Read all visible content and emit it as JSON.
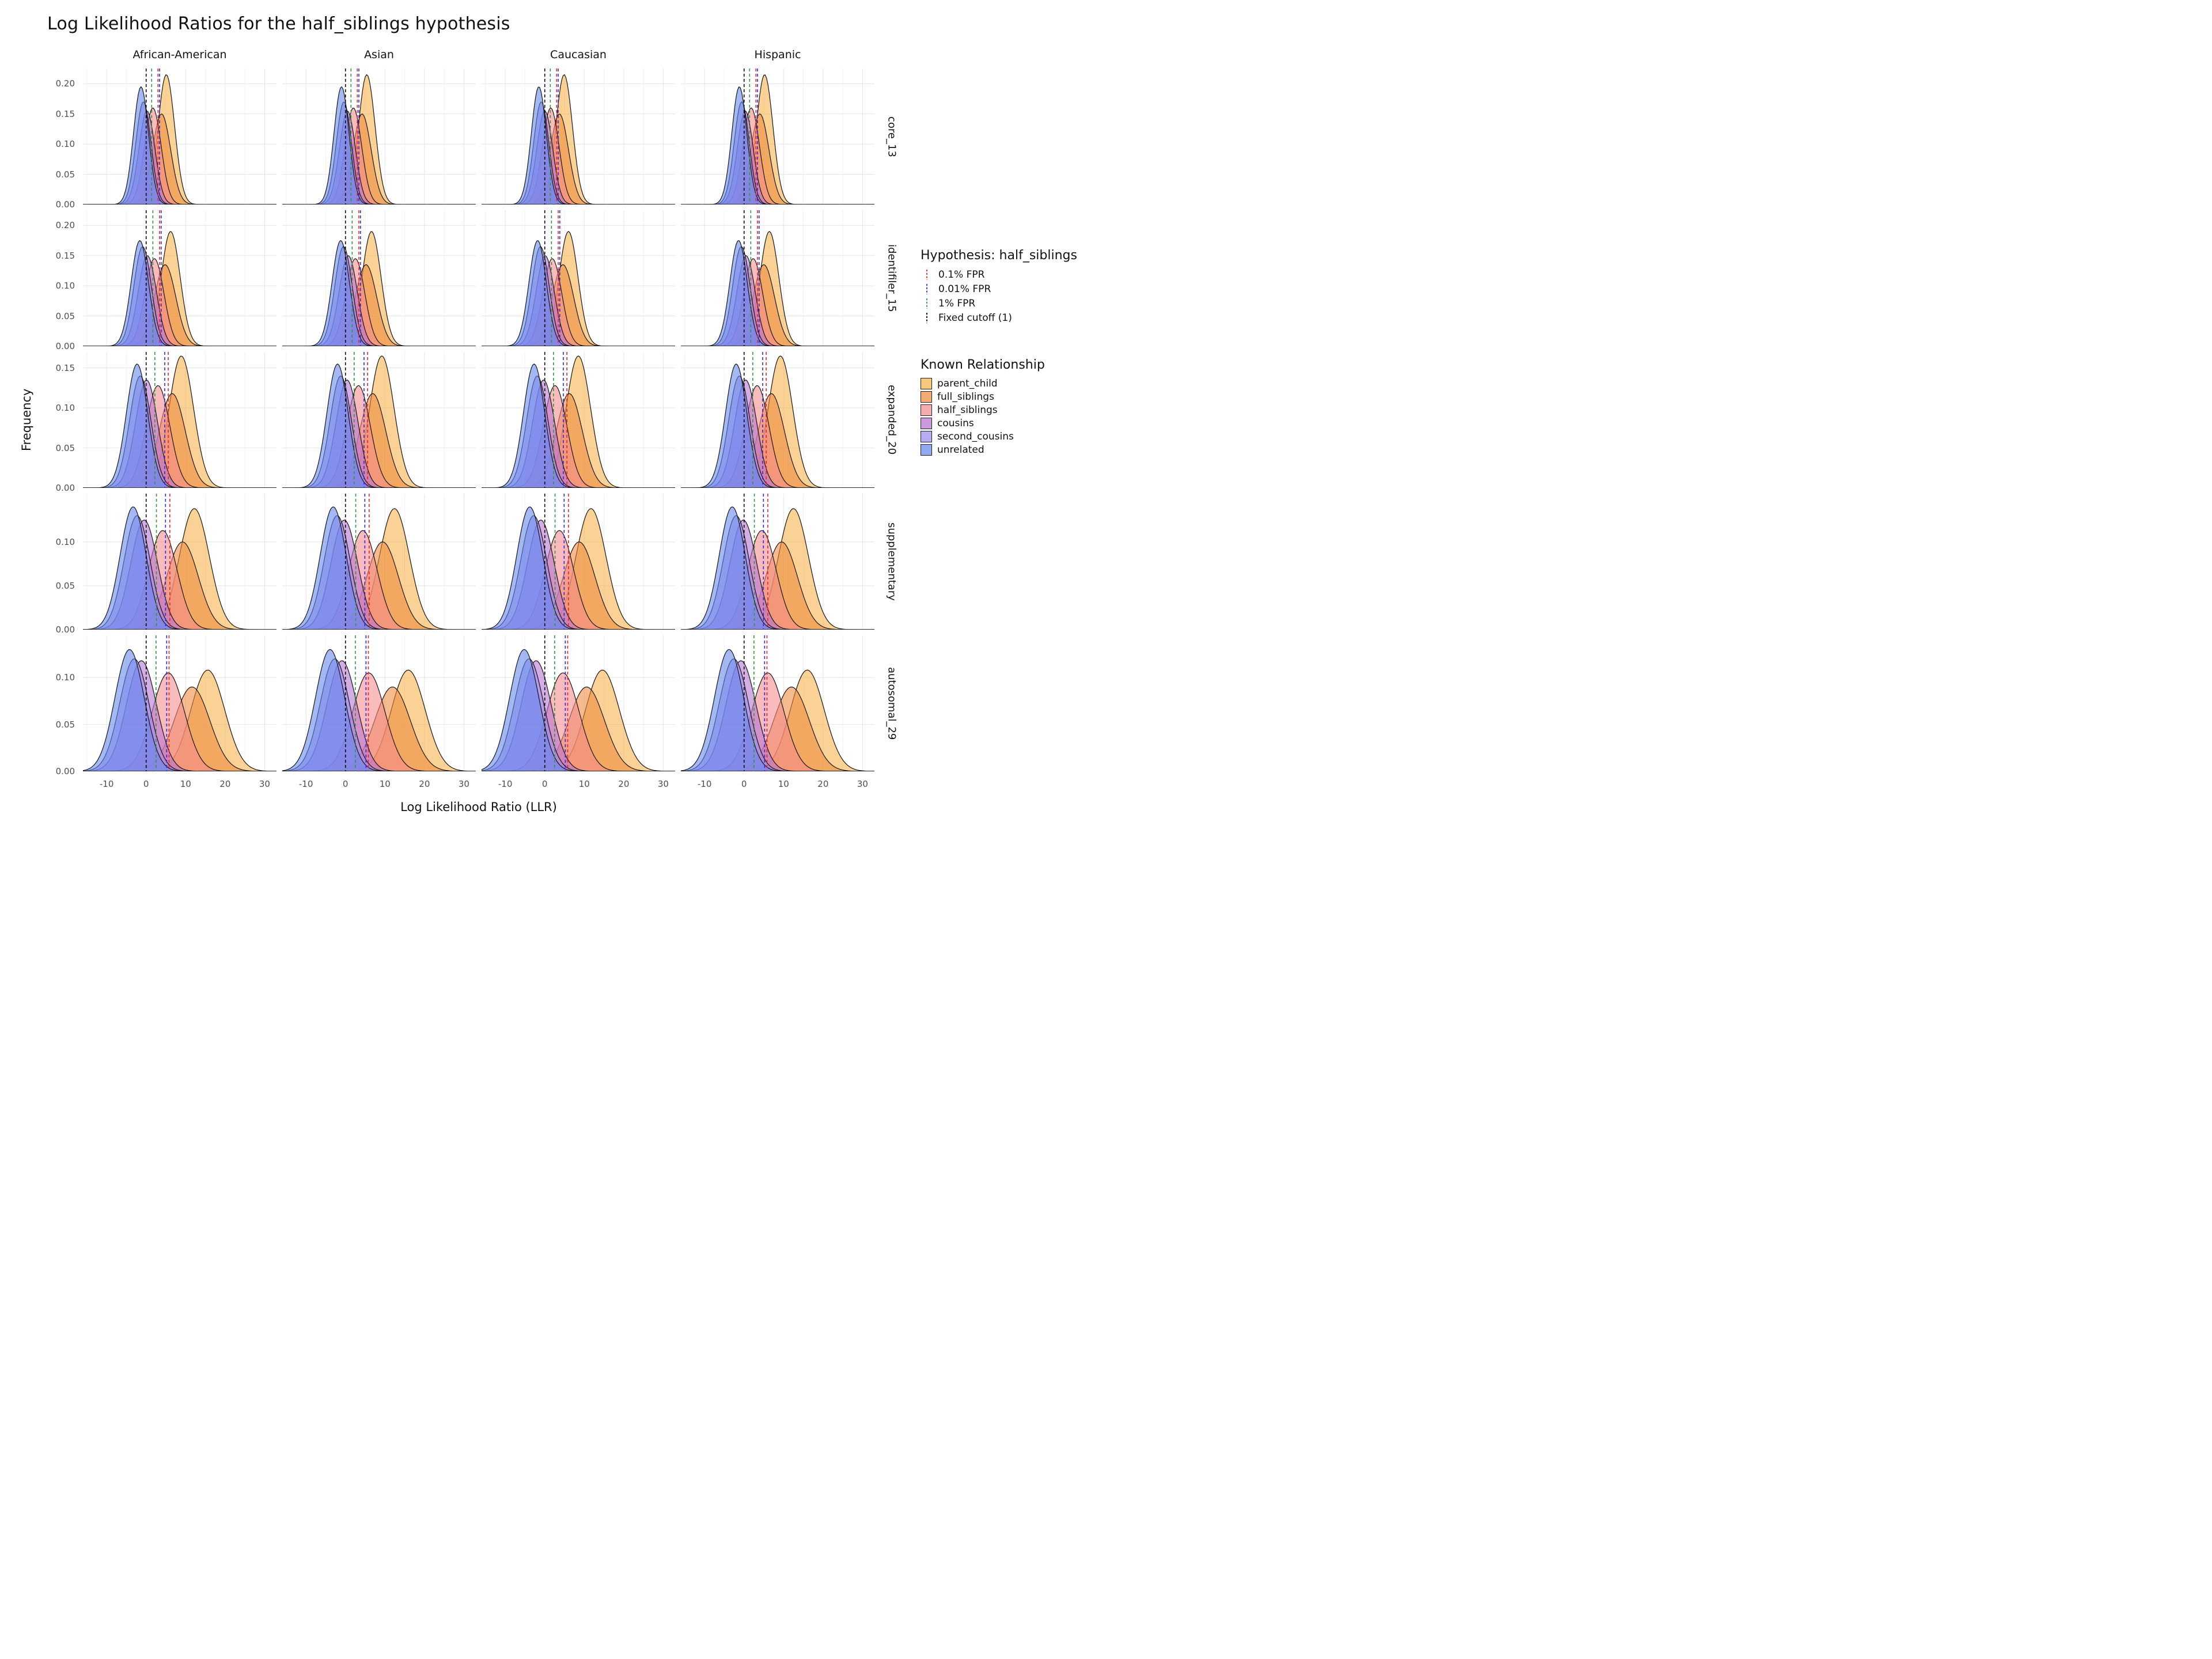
{
  "title": "Log Likelihood Ratios for the half_siblings hypothesis",
  "axes": {
    "x_label": "Log Likelihood Ratio (LLR)",
    "y_label": "Frequency"
  },
  "facets": {
    "columns": [
      "African-American",
      "Asian",
      "Caucasian",
      "Hispanic"
    ],
    "rows": [
      "core_13",
      "identifiler_15",
      "expanded_20",
      "supplementary",
      "autosomal_29"
    ]
  },
  "legend": {
    "hypothesis_title": "Hypothesis: half_siblings",
    "cutoff_items": [
      {
        "key": "fpr_0_1",
        "label": "0.1% FPR",
        "color": "#EC2227"
      },
      {
        "key": "fpr_0_01",
        "label": "0.01% FPR",
        "color": "#2B2BDF"
      },
      {
        "key": "fpr_1",
        "label": "1% FPR",
        "color": "#2E9641"
      },
      {
        "key": "fixed",
        "label": "Fixed cutoff (1)",
        "color": "#000000"
      }
    ],
    "relationship_title": "Known Relationship",
    "relationship_items": [
      {
        "key": "parent_child",
        "label": "parent_child",
        "color": "#F6B24A"
      },
      {
        "key": "full_siblings",
        "label": "full_siblings",
        "color": "#EE8A3C"
      },
      {
        "key": "half_siblings",
        "label": "half_siblings",
        "color": "#F4898B"
      },
      {
        "key": "cousins",
        "label": "cousins",
        "color": "#B671D2"
      },
      {
        "key": "second_cousins",
        "label": "second_cousins",
        "color": "#9B8BEF"
      },
      {
        "key": "unrelated",
        "label": "unrelated",
        "color": "#6386EC"
      }
    ]
  },
  "chart_data": {
    "type": "area",
    "plot_kind": "faceted overlaid density curves; rows = STR marker panel, columns = population",
    "x_range": [
      -16,
      33
    ],
    "x_ticks": [
      -10,
      0,
      10,
      20,
      30
    ],
    "x_minor_ticks": [
      -15,
      -5,
      5,
      15,
      25
    ],
    "series_draw_order": [
      "parent_child",
      "full_siblings",
      "half_siblings",
      "cousins",
      "second_cousins",
      "unrelated"
    ],
    "fill_opacity": 0.58,
    "rows": [
      {
        "name": "core_13",
        "ylim": 0.225,
        "y_ticks": [
          0,
          0.05,
          0.1,
          0.15,
          0.2
        ],
        "cutoffs": {
          "fixed": 0,
          "fpr_1": 1.4,
          "fpr_0_1": 3.0,
          "fpr_0_01": 3.4
        },
        "col_mean_shift": [
          0,
          0.3,
          -0.2,
          0.1
        ],
        "densities": {
          "unrelated": {
            "mean": -1.3,
            "sd": 1.9,
            "peak": 0.195
          },
          "second_cousins": {
            "mean": -0.7,
            "sd": 1.9,
            "peak": 0.17
          },
          "cousins": {
            "mean": 0.2,
            "sd": 2.0,
            "peak": 0.155
          },
          "half_siblings": {
            "mean": 1.7,
            "sd": 2.1,
            "peak": 0.16
          },
          "full_siblings": {
            "mean": 3.9,
            "sd": 2.3,
            "peak": 0.15
          },
          "parent_child": {
            "mean": 5.1,
            "sd": 2.1,
            "peak": 0.215
          }
        }
      },
      {
        "name": "identifiler_15",
        "ylim": 0.225,
        "y_ticks": [
          0,
          0.05,
          0.1,
          0.15,
          0.2
        ],
        "cutoffs": {
          "fixed": 0,
          "fpr_1": 1.7,
          "fpr_0_1": 3.4,
          "fpr_0_01": 3.8
        },
        "col_mean_shift": [
          0,
          0.4,
          -0.2,
          0.2
        ],
        "densities": {
          "unrelated": {
            "mean": -1.6,
            "sd": 2.2,
            "peak": 0.175
          },
          "second_cousins": {
            "mean": -0.9,
            "sd": 2.2,
            "peak": 0.165
          },
          "cousins": {
            "mean": 0.3,
            "sd": 2.3,
            "peak": 0.15
          },
          "half_siblings": {
            "mean": 2.1,
            "sd": 2.4,
            "peak": 0.145
          },
          "full_siblings": {
            "mean": 4.8,
            "sd": 2.7,
            "peak": 0.135
          },
          "parent_child": {
            "mean": 6.2,
            "sd": 2.4,
            "peak": 0.19
          }
        }
      },
      {
        "name": "expanded_20",
        "ylim": 0.17,
        "y_ticks": [
          0,
          0.05,
          0.1,
          0.15
        ],
        "cutoffs": {
          "fixed": 0,
          "fpr_1": 2.2,
          "fpr_0_1": 5.6,
          "fpr_0_01": 4.7
        },
        "col_mean_shift": [
          0,
          0.3,
          -0.4,
          0.3
        ],
        "densities": {
          "unrelated": {
            "mean": -2.3,
            "sd": 2.7,
            "peak": 0.155
          },
          "second_cousins": {
            "mean": -1.5,
            "sd": 2.7,
            "peak": 0.14
          },
          "cousins": {
            "mean": 0.1,
            "sd": 2.8,
            "peak": 0.135
          },
          "half_siblings": {
            "mean": 3.0,
            "sd": 3.0,
            "peak": 0.128
          },
          "full_siblings": {
            "mean": 6.6,
            "sd": 3.3,
            "peak": 0.118
          },
          "parent_child": {
            "mean": 8.9,
            "sd": 3.1,
            "peak": 0.165
          }
        }
      },
      {
        "name": "supplementary",
        "ylim": 0.155,
        "y_ticks": [
          0,
          0.05,
          0.1
        ],
        "cutoffs": {
          "fixed": 0,
          "fpr_1": 2.6,
          "fpr_0_1": 6.0,
          "fpr_0_01": 4.9
        },
        "col_mean_shift": [
          0,
          0.2,
          -0.5,
          0.3
        ],
        "densities": {
          "unrelated": {
            "mean": -3.3,
            "sd": 3.3,
            "peak": 0.14
          },
          "second_cousins": {
            "mean": -2.3,
            "sd": 3.3,
            "peak": 0.13
          },
          "cousins": {
            "mean": -0.5,
            "sd": 3.4,
            "peak": 0.125
          },
          "half_siblings": {
            "mean": 4.2,
            "sd": 3.6,
            "peak": 0.113
          },
          "full_siblings": {
            "mean": 9.2,
            "sd": 4.0,
            "peak": 0.1
          },
          "parent_child": {
            "mean": 12.2,
            "sd": 3.8,
            "peak": 0.138
          }
        }
      },
      {
        "name": "autosomal_29",
        "ylim": 0.145,
        "y_ticks": [
          0,
          0.05,
          0.1
        ],
        "cutoffs": {
          "fixed": 0,
          "fpr_1": 2.5,
          "fpr_0_1": 5.8,
          "fpr_0_01": 5.2
        },
        "col_mean_shift": [
          0,
          0.3,
          -1.0,
          0.4
        ],
        "densities": {
          "unrelated": {
            "mean": -4.2,
            "sd": 3.7,
            "peak": 0.13
          },
          "second_cousins": {
            "mean": -3.0,
            "sd": 3.7,
            "peak": 0.12
          },
          "cousins": {
            "mean": -1.2,
            "sd": 3.8,
            "peak": 0.118
          },
          "half_siblings": {
            "mean": 5.6,
            "sd": 4.1,
            "peak": 0.105
          },
          "full_siblings": {
            "mean": 11.6,
            "sd": 4.5,
            "peak": 0.09
          },
          "parent_child": {
            "mean": 15.6,
            "sd": 4.3,
            "peak": 0.108
          }
        }
      }
    ]
  }
}
